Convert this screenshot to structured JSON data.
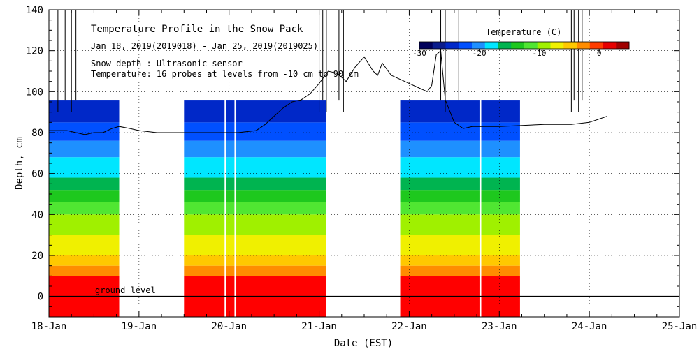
{
  "chart_data": {
    "type": "heatmap",
    "title": "Temperature Profile in the Snow Pack",
    "date_range": "Jan 18, 2019(2019018) - Jan 25, 2019(2019025)",
    "snow_depth_note": "Snow depth : Ultrasonic sensor",
    "temperature_note": "Temperature: 16 probes at levels from -10 cm to 90 cm",
    "xlabel": "Date (EST)",
    "ylabel": "Depth, cm",
    "xlim": [
      0,
      7
    ],
    "ylim": [
      -10,
      140
    ],
    "x_ticks": [
      {
        "v": 0,
        "label": "18-Jan"
      },
      {
        "v": 1,
        "label": "19-Jan"
      },
      {
        "v": 2,
        "label": "20-Jan"
      },
      {
        "v": 3,
        "label": "21-Jan"
      },
      {
        "v": 4,
        "label": "22-Jan"
      },
      {
        "v": 5,
        "label": "23-Jan"
      },
      {
        "v": 6,
        "label": "24-Jan"
      },
      {
        "v": 7,
        "label": "25-Jan"
      }
    ],
    "y_ticks": [
      0,
      20,
      40,
      60,
      80,
      100,
      120,
      140
    ],
    "ground_level_label": "ground level",
    "ground_level_value": 0,
    "colorbar": {
      "title": "Temperature (C)",
      "range": [
        -30,
        5
      ],
      "ticks": [
        {
          "v": -30,
          "label": "-30"
        },
        {
          "v": -20,
          "label": "-20"
        },
        {
          "v": -10,
          "label": "-10"
        },
        {
          "v": 0,
          "label": "0"
        }
      ],
      "colors": [
        "#00005a",
        "#0a1c8c",
        "#0028c8",
        "#0050ff",
        "#1e90ff",
        "#00e6ff",
        "#00b450",
        "#1ec81e",
        "#50e632",
        "#a0f000",
        "#f0f000",
        "#ffc800",
        "#ff8c00",
        "#ff3c00",
        "#e60000",
        "#a00000"
      ]
    },
    "temperature_bands": [
      {
        "bottom": -10,
        "top": 10,
        "color": "#ff0000"
      },
      {
        "bottom": 10,
        "top": 15,
        "color": "#ff8c00"
      },
      {
        "bottom": 15,
        "top": 20,
        "color": "#ffc800"
      },
      {
        "bottom": 20,
        "top": 30,
        "color": "#f0f000"
      },
      {
        "bottom": 30,
        "top": 40,
        "color": "#a0f000"
      },
      {
        "bottom": 40,
        "top": 46,
        "color": "#50e632"
      },
      {
        "bottom": 46,
        "top": 52,
        "color": "#1ec81e"
      },
      {
        "bottom": 52,
        "top": 58,
        "color": "#00b450"
      },
      {
        "bottom": 58,
        "top": 68,
        "color": "#00e6ff"
      },
      {
        "bottom": 68,
        "top": 76,
        "color": "#1e90ff"
      },
      {
        "bottom": 76,
        "top": 85,
        "color": "#0050ff"
      },
      {
        "bottom": 85,
        "top": 96,
        "color": "#0028c8"
      }
    ],
    "data_segments": [
      {
        "start": 0.0,
        "end": 0.78
      },
      {
        "start": 1.5,
        "end": 1.95
      },
      {
        "start": 1.97,
        "end": 2.06
      },
      {
        "start": 2.08,
        "end": 3.08
      },
      {
        "start": 3.9,
        "end": 4.78
      },
      {
        "start": 4.8,
        "end": 5.23
      }
    ],
    "snow_depth_series": [
      [
        0.0,
        81
      ],
      [
        0.1,
        81
      ],
      [
        0.2,
        81
      ],
      [
        0.3,
        80
      ],
      [
        0.4,
        79
      ],
      [
        0.5,
        80
      ],
      [
        0.6,
        80
      ],
      [
        0.7,
        82
      ],
      [
        0.78,
        83
      ],
      [
        0.9,
        82
      ],
      [
        1.0,
        81
      ],
      [
        1.2,
        80
      ],
      [
        1.5,
        80
      ],
      [
        1.8,
        80
      ],
      [
        2.1,
        80
      ],
      [
        2.3,
        81
      ],
      [
        2.4,
        84
      ],
      [
        2.5,
        88
      ],
      [
        2.6,
        92
      ],
      [
        2.7,
        95
      ],
      [
        2.8,
        96
      ],
      [
        2.9,
        99
      ],
      [
        3.0,
        104
      ],
      [
        3.1,
        110
      ],
      [
        3.2,
        109
      ],
      [
        3.3,
        105
      ],
      [
        3.4,
        112
      ],
      [
        3.5,
        117
      ],
      [
        3.6,
        110
      ],
      [
        3.65,
        108
      ],
      [
        3.7,
        114
      ],
      [
        3.8,
        108
      ],
      [
        3.9,
        106
      ],
      [
        4.0,
        104
      ],
      [
        4.1,
        102
      ],
      [
        4.2,
        100
      ],
      [
        4.25,
        103
      ],
      [
        4.3,
        118
      ],
      [
        4.35,
        120
      ],
      [
        4.4,
        96
      ],
      [
        4.5,
        85
      ],
      [
        4.6,
        82
      ],
      [
        4.7,
        83
      ],
      [
        4.8,
        83
      ],
      [
        5.0,
        83
      ],
      [
        5.5,
        84
      ],
      [
        5.8,
        84
      ],
      [
        6.0,
        85
      ],
      [
        6.2,
        88
      ]
    ],
    "sensor_spikes_x": [
      0.1,
      0.18,
      0.25,
      0.3,
      3.0,
      3.04,
      3.08,
      3.22,
      3.27,
      4.35,
      4.4,
      4.55,
      5.8,
      5.83,
      5.88,
      5.92
    ]
  }
}
